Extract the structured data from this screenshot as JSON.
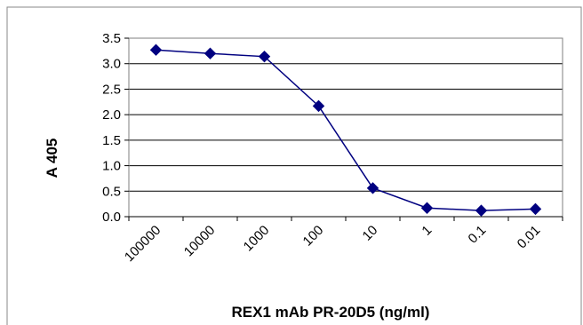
{
  "chart_data": {
    "type": "line",
    "title": "",
    "xlabel": "REX1 mAb PR-20D5 (ng/ml)",
    "ylabel": "A 405",
    "categories": [
      "100000",
      "10000",
      "1000",
      "100",
      "10",
      "1",
      "0.1",
      "0.01"
    ],
    "series": [
      {
        "values": [
          3.27,
          3.2,
          3.14,
          2.17,
          0.56,
          0.17,
          0.12,
          0.15
        ]
      }
    ],
    "ylim": [
      0,
      3.5
    ],
    "yticks": [
      "0.0",
      "0.5",
      "1.0",
      "1.5",
      "2.0",
      "2.5",
      "3.0",
      "3.5"
    ],
    "grid": true,
    "legend": "none",
    "colors": {
      "series": "#000080",
      "grid": "#000000",
      "border": "#7f7f7f"
    }
  }
}
